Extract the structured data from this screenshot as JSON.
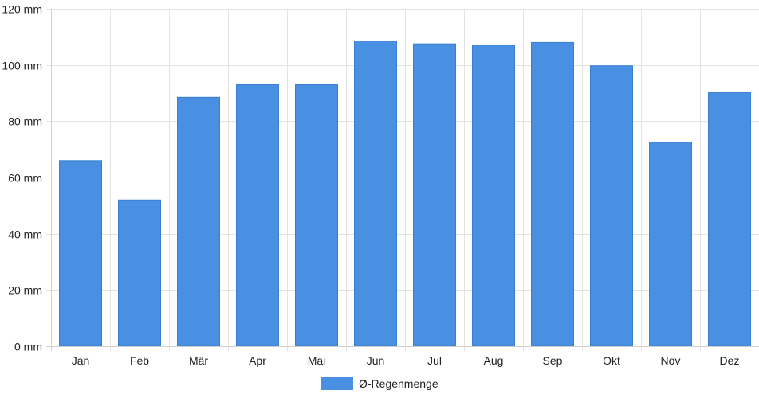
{
  "chart_data": {
    "type": "bar",
    "categories": [
      "Jan",
      "Feb",
      "Mär",
      "Apr",
      "Mai",
      "Jun",
      "Jul",
      "Aug",
      "Sep",
      "Okt",
      "Nov",
      "Dez"
    ],
    "series": [
      {
        "name": "Ø-Regenmenge",
        "values": [
          66,
          52,
          88.5,
          93,
          93,
          108.5,
          107.5,
          107,
          108,
          99.7,
          72.5,
          90.3
        ],
        "color": "#4a90e2"
      }
    ],
    "ylim": [
      0,
      120
    ],
    "yticks": [
      0,
      20,
      40,
      60,
      80,
      100,
      120
    ],
    "ytick_suffix": " mm",
    "grid": true,
    "legend_position": "bottom-center"
  }
}
